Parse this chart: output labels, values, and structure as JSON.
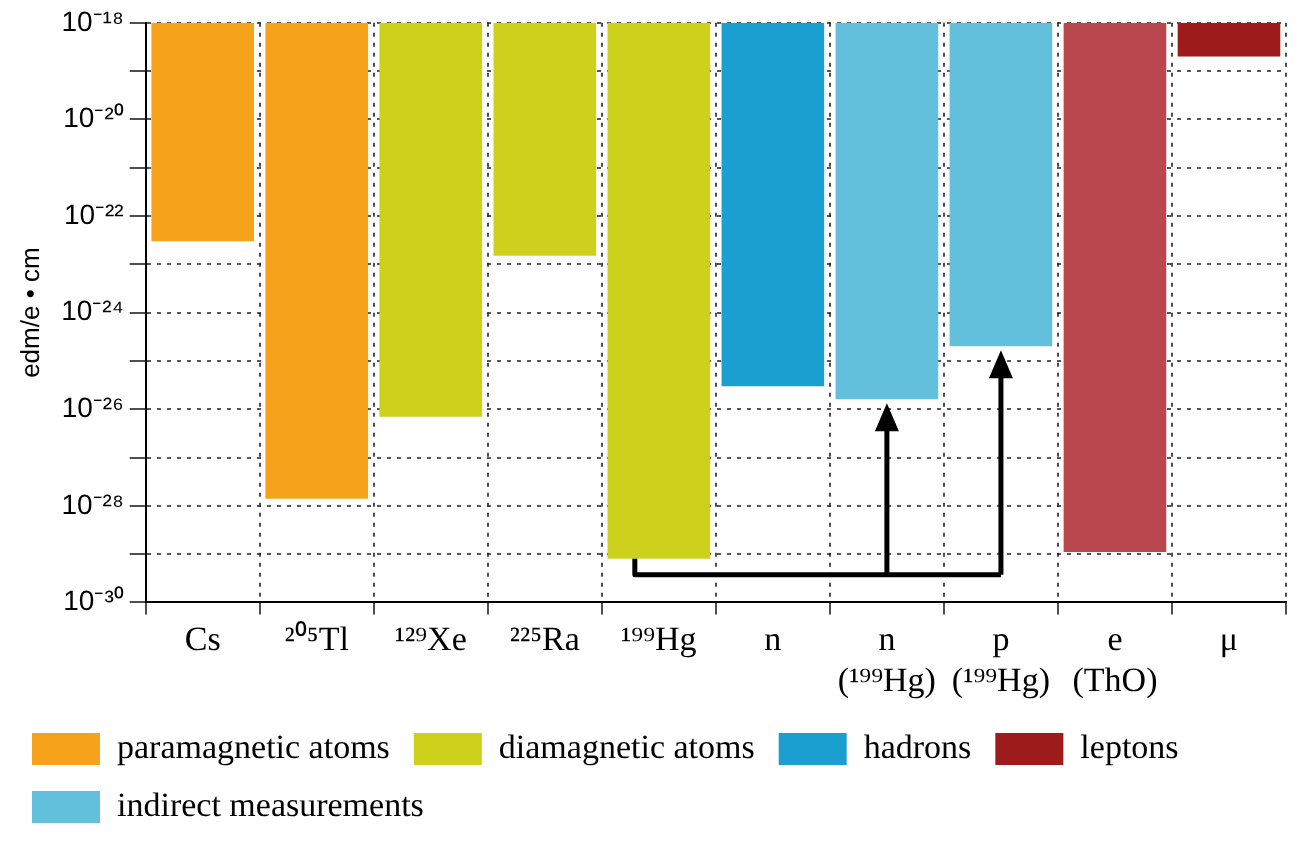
{
  "chart_data": {
    "type": "bar",
    "ylabel": "edm/e • cm",
    "categories": [
      "Cs",
      "²⁰⁵Tl",
      "¹²⁹Xe",
      "²²⁵Ra",
      "¹⁹⁹Hg",
      "n",
      "n\n(¹⁹⁹Hg)",
      "p\n(¹⁹⁹Hg)",
      "e\n(ThO)",
      "μ"
    ],
    "series": [
      {
        "name": "paramagnetic atoms",
        "color": "#f7a21b",
        "base": [
          3e-23,
          1.4e-28,
          null,
          null,
          null,
          null,
          null,
          null,
          null,
          null
        ],
        "values": [
          9.9997e-19,
          9.9999999986e-19,
          null,
          null,
          null,
          null,
          null,
          null,
          null,
          null
        ]
      },
      {
        "name": "diamagnetic atoms",
        "color": "#cdd11b",
        "base": [
          null,
          null,
          7e-27,
          1.5e-23,
          8e-30,
          null,
          null,
          null,
          null,
          null
        ],
        "values": [
          null,
          null,
          9.99999993e-19,
          9.99985e-19,
          9.99999999992e-19,
          null,
          null,
          null,
          null,
          null
        ]
      },
      {
        "name": "hadrons",
        "color": "#1a9fd0",
        "base": [
          null,
          null,
          null,
          null,
          null,
          3e-26,
          null,
          null,
          null,
          null
        ],
        "values": [
          null,
          null,
          null,
          null,
          null,
          9.9999997e-19,
          null,
          null,
          null,
          null
        ]
      },
      {
        "name": "leptons",
        "color": "#9e1b1b",
        "base": [
          null,
          null,
          null,
          null,
          null,
          null,
          null,
          null,
          null,
          2e-19
        ],
        "values": [
          null,
          null,
          null,
          null,
          null,
          null,
          null,
          null,
          null,
          8e-19
        ]
      },
      {
        "name": "indirect measurements",
        "color": "#62c0dc",
        "colors": [
          "#62c0dc",
          "#62c0dc",
          "#62c0dc",
          "#62c0dc",
          "#62c0dc",
          "#62c0dc",
          "#62c0dc",
          "#62c0dc",
          "#b9474d",
          "#62c0dc"
        ],
        "base": [
          null,
          null,
          null,
          null,
          null,
          null,
          1.6e-26,
          2e-25,
          1.1e-29,
          null
        ],
        "values": [
          null,
          null,
          null,
          null,
          null,
          null,
          9.99999984e-19,
          9.999998e-19,
          9.99999999989e-19,
          null
        ]
      }
    ],
    "log": "y",
    "ylim": [
      1e-30,
      1e-18
    ],
    "yticks": [
      {
        "value": 1e-30,
        "label": "10⁻³⁰"
      },
      {
        "value": 1e-29,
        "label": null
      },
      {
        "value": 1e-28,
        "label": "10⁻²⁸"
      },
      {
        "value": 1e-27,
        "label": null
      },
      {
        "value": 1e-26,
        "label": "10⁻²⁶"
      },
      {
        "value": 1e-25,
        "label": null
      },
      {
        "value": 1e-24,
        "label": "10⁻²⁴"
      },
      {
        "value": 1e-23,
        "label": null
      },
      {
        "value": 1e-22,
        "label": "10⁻²²"
      },
      {
        "value": 1e-21,
        "label": null
      },
      {
        "value": 1e-20,
        "label": "10⁻²⁰"
      },
      {
        "value": 1e-19,
        "label": null
      },
      {
        "value": 1e-18,
        "label": "10⁻¹⁸"
      }
    ],
    "grid": true,
    "legend": "bottom"
  }
}
